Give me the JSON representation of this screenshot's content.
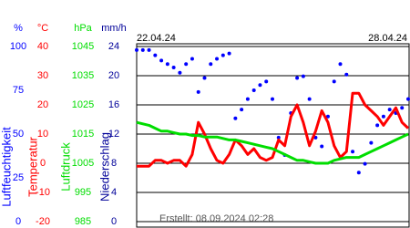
{
  "chart_data": {
    "type": "line",
    "dates": [
      "22.04.24",
      "28.04.24"
    ],
    "footer": "Erstellt: 08.09.2024 02:28",
    "grid": true,
    "axes": [
      {
        "unit": "%",
        "title": "Luftfeuchtigkeit",
        "color": "#0000ff",
        "style": "dots",
        "ylim": [
          0,
          100
        ],
        "yticks": [
          0,
          25,
          50,
          75,
          100
        ],
        "values": [
          98,
          98,
          98,
          95,
          92,
          90,
          88,
          85,
          90,
          93,
          74,
          82,
          90,
          93,
          95,
          96,
          59,
          64,
          70,
          75,
          78,
          80,
          70,
          48,
          38,
          62,
          82,
          83,
          70,
          48,
          43,
          60,
          80,
          90,
          84,
          40,
          28,
          33,
          45,
          55,
          60,
          64,
          62,
          65,
          70
        ]
      },
      {
        "unit": "°C",
        "title": "Temperatur",
        "color": "#ff0000",
        "style": "line",
        "ylim": [
          -20,
          40
        ],
        "yticks": [
          -20,
          -10,
          0,
          10,
          20,
          30,
          40
        ],
        "values": [
          -1,
          -1,
          -1,
          1,
          1,
          0,
          1,
          1,
          -1,
          3,
          14,
          10,
          5,
          1,
          0,
          3,
          8,
          6,
          3,
          5,
          2,
          1,
          2,
          8,
          6,
          16,
          20,
          14,
          6,
          11,
          18,
          14,
          6,
          2,
          4,
          24,
          24,
          20,
          18,
          16,
          13,
          16,
          19,
          14,
          12
        ]
      },
      {
        "unit": "hPa",
        "title": "Luftdruck",
        "color": "#00dd00",
        "style": "line",
        "ylim": [
          985,
          1045
        ],
        "yticks": [
          985,
          995,
          1005,
          1015,
          1025,
          1035,
          1045
        ],
        "values": [
          1019,
          1018.5,
          1018,
          1017,
          1016,
          1016,
          1015.5,
          1015,
          1015,
          1014.5,
          1014.5,
          1014,
          1014,
          1014,
          1013.5,
          1013,
          1013,
          1012.5,
          1012,
          1011.5,
          1011,
          1010.5,
          1010,
          1009,
          1008,
          1007,
          1006,
          1006,
          1005.5,
          1005,
          1005,
          1005,
          1006,
          1006.5,
          1007,
          1007,
          1007,
          1008,
          1009,
          1010,
          1011,
          1012,
          1013,
          1014,
          1015
        ]
      },
      {
        "unit": "mm/h",
        "title": "Niederschlag",
        "color": "#000099",
        "style": "bars",
        "ylim": [
          0,
          24
        ],
        "yticks": [
          0,
          4,
          8,
          12,
          16,
          20,
          24
        ]
      }
    ]
  }
}
